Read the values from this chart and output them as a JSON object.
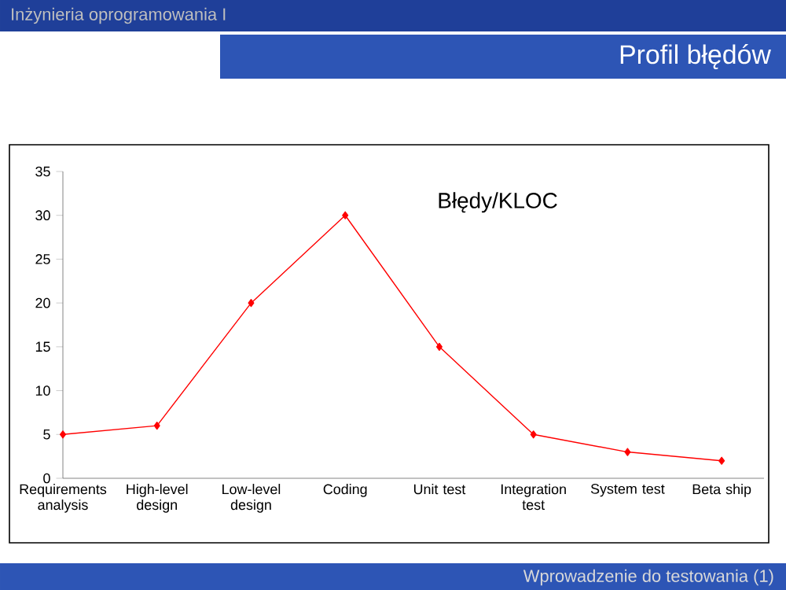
{
  "chart_data": {
    "type": "line",
    "title": "Błędy/KLOC",
    "annotations": [
      "Inżynieria oprogramowania I",
      "Profil błędów",
      "Wprowadzenie do testowania (1)"
    ],
    "categories": [
      "Requirements analysis",
      "High-level design",
      "Low-level design",
      "Coding",
      "Unit test",
      "Integration test",
      "System test",
      "Beta ship"
    ],
    "series": [
      {
        "color": "#ff0000",
        "values": [
          5,
          6,
          20,
          30,
          15,
          5,
          3,
          2
        ]
      }
    ],
    "ylim": [
      0,
      35
    ],
    "yticks": [
      0,
      5,
      10,
      15,
      20,
      25,
      30,
      35
    ],
    "marker": "diamond",
    "line_style": "solid",
    "grid": false
  }
}
